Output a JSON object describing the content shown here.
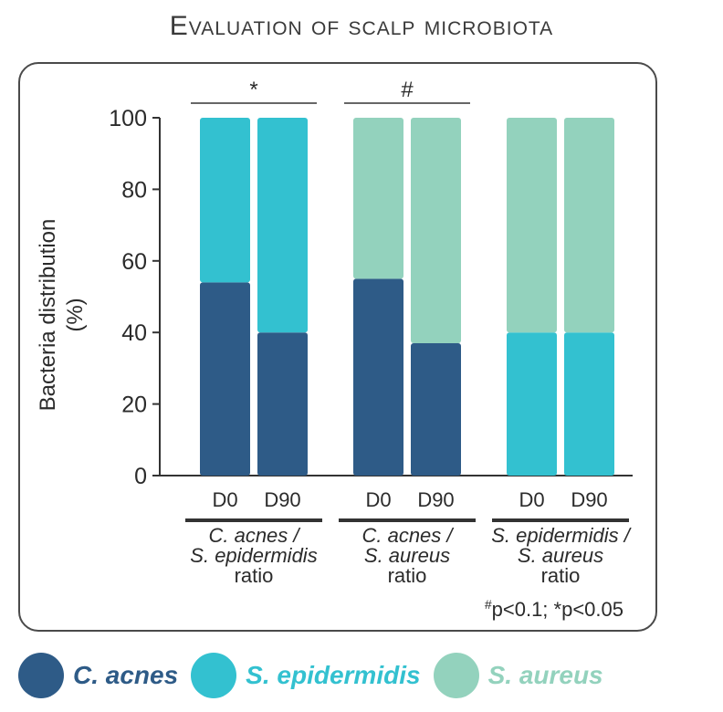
{
  "colors": {
    "c_acnes": "#2e5b87",
    "s_epidermidis": "#33c1d0",
    "s_aureus": "#93d2bd",
    "text": "#2b2b2b"
  },
  "title": "Evaluation of scalp microbiota",
  "legend": [
    {
      "label": "C. acnes",
      "color": "#2e5b87"
    },
    {
      "label": "S. epidermidis",
      "color": "#33c1d0"
    },
    {
      "label": "S. aureus",
      "color": "#93d2bd"
    }
  ],
  "chart_data": {
    "type": "bar",
    "stacked": true,
    "title": "Evaluation of scalp microbiota",
    "ylabel": "Bacteria distribution (%)",
    "ylim": [
      0,
      100
    ],
    "yticks": [
      0,
      20,
      40,
      60,
      80,
      100
    ],
    "groups": [
      {
        "label_lines": [
          "C. acnes /",
          "S. epidermidis",
          "ratio"
        ],
        "significance": "*",
        "bars": [
          {
            "x": "D0",
            "segments": [
              {
                "series": "C. acnes",
                "value": 54
              },
              {
                "series": "S. epidermidis",
                "value": 46
              }
            ]
          },
          {
            "x": "D90",
            "segments": [
              {
                "series": "C. acnes",
                "value": 40
              },
              {
                "series": "S. epidermidis",
                "value": 60
              }
            ]
          }
        ]
      },
      {
        "label_lines": [
          "C. acnes /",
          "S. aureus",
          "ratio"
        ],
        "significance": "#",
        "bars": [
          {
            "x": "D0",
            "segments": [
              {
                "series": "C. acnes",
                "value": 55
              },
              {
                "series": "S. aureus",
                "value": 45
              }
            ]
          },
          {
            "x": "D90",
            "segments": [
              {
                "series": "C. acnes",
                "value": 37
              },
              {
                "series": "S. aureus",
                "value": 63
              }
            ]
          }
        ]
      },
      {
        "label_lines": [
          "S. epidermidis /",
          "S. aureus",
          "ratio"
        ],
        "significance": "",
        "bars": [
          {
            "x": "D0",
            "segments": [
              {
                "series": "S. epidermidis",
                "value": 40
              },
              {
                "series": "S. aureus",
                "value": 60
              }
            ]
          },
          {
            "x": "D90",
            "segments": [
              {
                "series": "S. epidermidis",
                "value": 40
              },
              {
                "series": "S. aureus",
                "value": 60
              }
            ]
          }
        ]
      }
    ],
    "footnote": {
      "sup": "#",
      "text": "p<0.1; *p<0.05"
    }
  }
}
